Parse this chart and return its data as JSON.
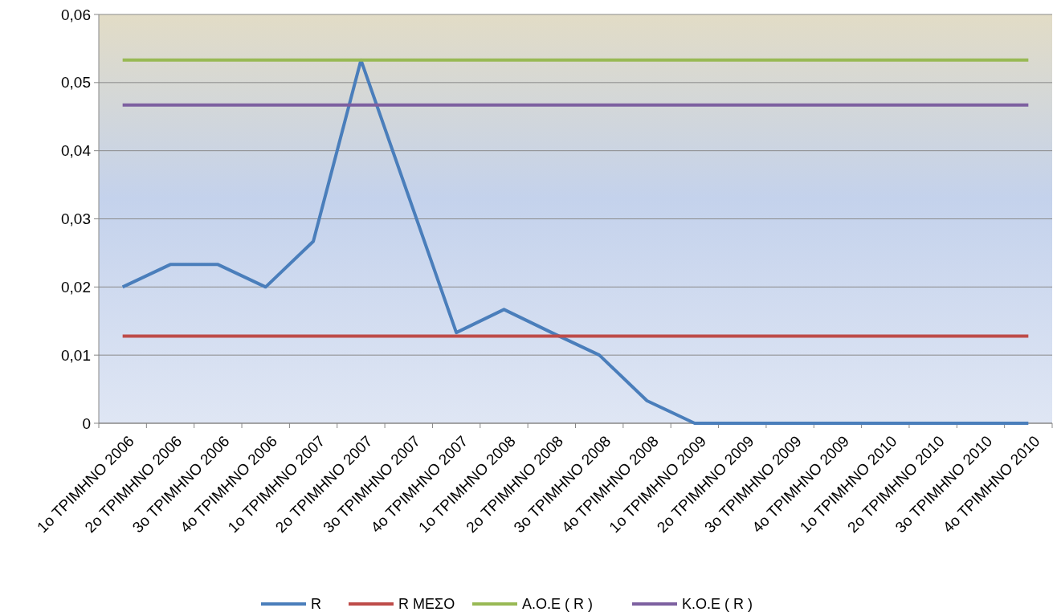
{
  "chart_data": {
    "type": "line",
    "categories": [
      "1ο ΤΡΙΜΗΝΟ 2006",
      "2ο ΤΡΙΜΗΝΟ 2006",
      "3ο ΤΡΙΜΗΝΟ 2006",
      "4ο ΤΡΙΜΗΝΟ 2006",
      "1ο ΤΡΙΜΗΝΟ 2007",
      "2ο ΤΡΙΜΗΝΟ 2007",
      "3ο ΤΡΙΜΗΝΟ 2007",
      "4ο ΤΡΙΜΗΝΟ 2007",
      "1ο ΤΡΙΜΗΝΟ 2008",
      "2ο ΤΡΙΜΗΝΟ 2008",
      "3ο ΤΡΙΜΗΝΟ 2008",
      "4ο ΤΡΙΜΗΝΟ 2008",
      "1ο ΤΡΙΜΗΝΟ 2009",
      "2ο ΤΡΙΜΗΝΟ 2009",
      "3ο ΤΡΙΜΗΝΟ 2009",
      "4ο ΤΡΙΜΗΝΟ 2009",
      "1ο ΤΡΙΜΗΝΟ 2010",
      "2ο ΤΡΙΜΗΝΟ 2010",
      "3ο ΤΡΙΜΗΝΟ 2010",
      "4ο ΤΡΙΜΗΝΟ 2010"
    ],
    "series": [
      {
        "name": "R",
        "color": "#4a7ebb",
        "values": [
          0.02,
          0.0233,
          0.0233,
          0.02,
          0.0267,
          0.0533,
          0.0333,
          0.0133,
          0.0167,
          0.0133,
          0.01,
          0.0033,
          0,
          0,
          0,
          0,
          0,
          0,
          0,
          0
        ]
      },
      {
        "name": "R ΜΕΣΟ",
        "color": "#be4b48",
        "values": [
          0.0128,
          0.0128,
          0.0128,
          0.0128,
          0.0128,
          0.0128,
          0.0128,
          0.0128,
          0.0128,
          0.0128,
          0.0128,
          0.0128,
          0.0128,
          0.0128,
          0.0128,
          0.0128,
          0.0128,
          0.0128,
          0.0128,
          0.0128
        ]
      },
      {
        "name": "Α.Ο.Ε ( R )",
        "color": "#98b954",
        "values": [
          0.0533,
          0.0533,
          0.0533,
          0.0533,
          0.0533,
          0.0533,
          0.0533,
          0.0533,
          0.0533,
          0.0533,
          0.0533,
          0.0533,
          0.0533,
          0.0533,
          0.0533,
          0.0533,
          0.0533,
          0.0533,
          0.0533,
          0.0533
        ]
      },
      {
        "name": "Κ.Ο.Ε ( R )",
        "color": "#7d60a0",
        "values": [
          0.0467,
          0.0467,
          0.0467,
          0.0467,
          0.0467,
          0.0467,
          0.0467,
          0.0467,
          0.0467,
          0.0467,
          0.0467,
          0.0467,
          0.0467,
          0.0467,
          0.0467,
          0.0467,
          0.0467,
          0.0467,
          0.0467,
          0.0467
        ]
      }
    ],
    "ylim": [
      0,
      0.06
    ],
    "yticks": [
      {
        "value": 0,
        "label": "0"
      },
      {
        "value": 0.01,
        "label": "0,01"
      },
      {
        "value": 0.02,
        "label": "0,02"
      },
      {
        "value": 0.03,
        "label": "0,03"
      },
      {
        "value": 0.04,
        "label": "0,04"
      },
      {
        "value": 0.05,
        "label": "0,05"
      },
      {
        "value": 0.06,
        "label": "0,06"
      }
    ],
    "grid": "y",
    "legend": "bottom",
    "marker": "none",
    "line_style": "solid"
  }
}
